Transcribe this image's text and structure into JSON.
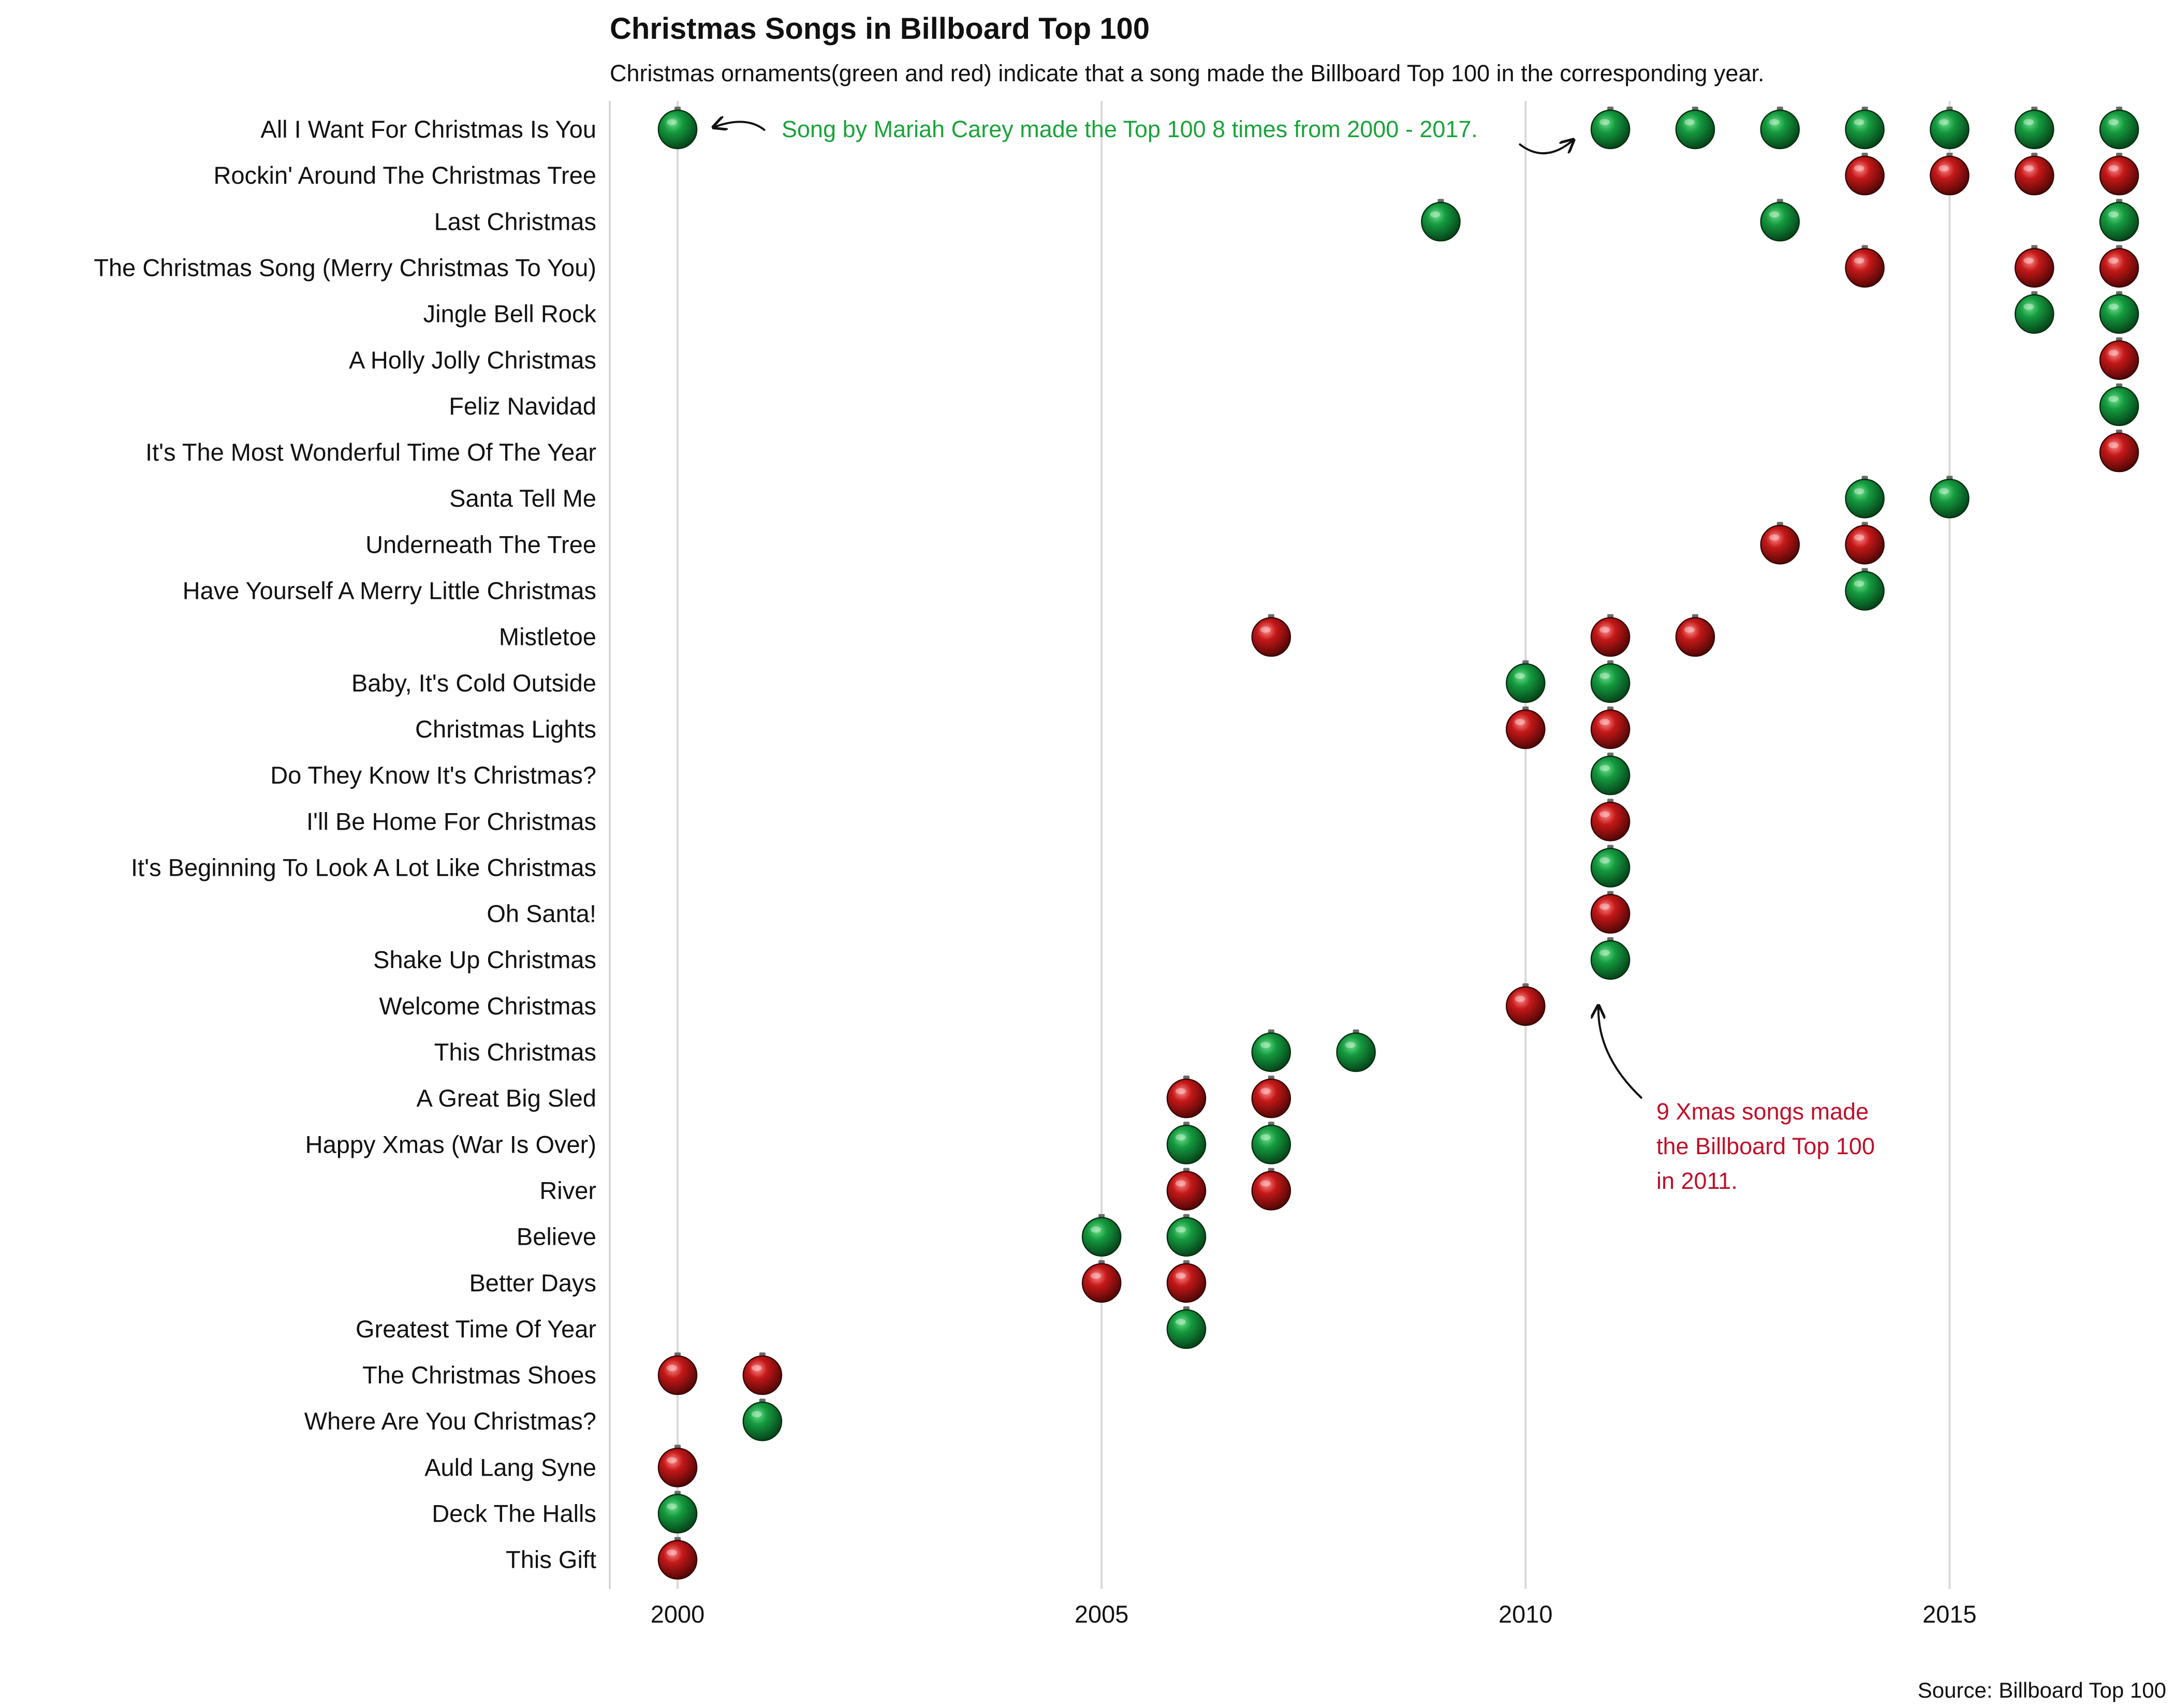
{
  "chart_data": {
    "type": "scatter",
    "title": "Christmas Songs in Billboard Top 100",
    "subtitle": "Christmas ornaments(green and red) indicate that a song made the Billboard Top 100 in the corresponding year.",
    "source": "Source: Billboard Top 100",
    "xlabel": "",
    "ylabel": "",
    "xlim": [
      1999.2,
      2017.5
    ],
    "x_ticks": [
      2000,
      2005,
      2010,
      2015
    ],
    "grid": "vertical major gridlines",
    "colors": {
      "green": "#0e8f3a",
      "red": "#c21a1a",
      "green_text": "#1aa33a",
      "red_text": "#c0102a"
    },
    "songs": [
      {
        "name": "All I Want For Christmas Is You",
        "years": [
          2000,
          2011,
          2012,
          2013,
          2014,
          2015,
          2016,
          2017
        ],
        "color": "green"
      },
      {
        "name": "Rockin' Around The Christmas Tree",
        "years": [
          2014,
          2015,
          2016,
          2017
        ],
        "color": "red"
      },
      {
        "name": "Last Christmas",
        "years": [
          2009,
          2013,
          2017
        ],
        "color": "green"
      },
      {
        "name": "The Christmas Song (Merry Christmas To You)",
        "years": [
          2014,
          2016,
          2017
        ],
        "color": "red"
      },
      {
        "name": "Jingle Bell Rock",
        "years": [
          2016,
          2017
        ],
        "color": "green"
      },
      {
        "name": "A Holly Jolly Christmas",
        "years": [
          2017
        ],
        "color": "red"
      },
      {
        "name": "Feliz Navidad",
        "years": [
          2017
        ],
        "color": "green"
      },
      {
        "name": "It's The Most Wonderful Time Of The Year",
        "years": [
          2017
        ],
        "color": "red"
      },
      {
        "name": "Santa Tell Me",
        "years": [
          2014,
          2015
        ],
        "color": "green"
      },
      {
        "name": "Underneath The Tree",
        "years": [
          2013,
          2014
        ],
        "color": "red"
      },
      {
        "name": "Have Yourself A Merry Little Christmas",
        "years": [
          2014
        ],
        "color": "green"
      },
      {
        "name": "Mistletoe",
        "years": [
          2007,
          2011,
          2012
        ],
        "color": "red"
      },
      {
        "name": "Baby, It's Cold Outside",
        "years": [
          2010,
          2011
        ],
        "color": "green"
      },
      {
        "name": "Christmas Lights",
        "years": [
          2010,
          2011
        ],
        "color": "red"
      },
      {
        "name": "Do They Know It's Christmas?",
        "years": [
          2011
        ],
        "color": "green"
      },
      {
        "name": "I'll Be Home For Christmas",
        "years": [
          2011
        ],
        "color": "red"
      },
      {
        "name": "It's Beginning To Look A Lot Like Christmas",
        "years": [
          2011
        ],
        "color": "green"
      },
      {
        "name": "Oh Santa!",
        "years": [
          2011
        ],
        "color": "red"
      },
      {
        "name": "Shake Up Christmas",
        "years": [
          2011
        ],
        "color": "green"
      },
      {
        "name": "Welcome Christmas",
        "years": [
          2010
        ],
        "color": "red"
      },
      {
        "name": "This Christmas",
        "years": [
          2007,
          2008
        ],
        "color": "green"
      },
      {
        "name": "A Great Big Sled",
        "years": [
          2006,
          2007
        ],
        "color": "red"
      },
      {
        "name": "Happy Xmas (War Is Over)",
        "years": [
          2006,
          2007
        ],
        "color": "green"
      },
      {
        "name": "River",
        "years": [
          2006,
          2007
        ],
        "color": "red"
      },
      {
        "name": "Believe",
        "years": [
          2005,
          2006
        ],
        "color": "green"
      },
      {
        "name": "Better Days",
        "years": [
          2005,
          2006
        ],
        "color": "red"
      },
      {
        "name": "Greatest Time Of Year",
        "years": [
          2006
        ],
        "color": "green"
      },
      {
        "name": "The Christmas Shoes",
        "years": [
          2000,
          2001
        ],
        "color": "red"
      },
      {
        "name": "Where Are You Christmas?",
        "years": [
          2001
        ],
        "color": "green"
      },
      {
        "name": "Auld Lang Syne",
        "years": [
          2000
        ],
        "color": "red"
      },
      {
        "name": "Deck The Halls",
        "years": [
          2000
        ],
        "color": "green"
      },
      {
        "name": "This Gift",
        "years": [
          2000
        ],
        "color": "red"
      }
    ],
    "annotations": [
      {
        "text": "Song by Mariah Carey made the Top 100 8 times from 2000 - 2017.",
        "color": "green",
        "song": "All I Want For Christmas Is You",
        "points_to_years": [
          2000,
          2011
        ]
      },
      {
        "lines": [
          "9 Xmas songs made",
          "the Billboard Top 100",
          "in 2011."
        ],
        "color": "red",
        "year": 2011
      }
    ]
  }
}
